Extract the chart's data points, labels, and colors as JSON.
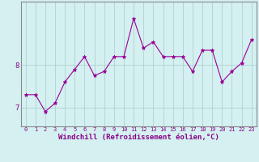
{
  "x": [
    0,
    1,
    2,
    3,
    4,
    5,
    6,
    7,
    8,
    9,
    10,
    11,
    12,
    13,
    14,
    15,
    16,
    17,
    18,
    19,
    20,
    21,
    22,
    23
  ],
  "y": [
    7.3,
    7.3,
    6.9,
    7.1,
    7.6,
    7.9,
    8.2,
    7.75,
    7.85,
    8.2,
    8.2,
    9.1,
    8.4,
    8.55,
    8.2,
    8.2,
    8.2,
    7.85,
    8.35,
    8.35,
    7.6,
    7.85,
    8.05,
    8.6
  ],
  "line_color": "#990099",
  "marker": "*",
  "marker_size": 3.5,
  "bg_color": "#d4f0f0",
  "grid_color": "#aacccc",
  "xlabel": "Windchill (Refroidissement éolien,°C)",
  "xlim": [
    -0.5,
    23.5
  ],
  "ylim": [
    6.55,
    9.5
  ],
  "yticks": [
    7,
    8
  ],
  "xticks": [
    0,
    1,
    2,
    3,
    4,
    5,
    6,
    7,
    8,
    9,
    10,
    11,
    12,
    13,
    14,
    15,
    16,
    17,
    18,
    19,
    20,
    21,
    22,
    23
  ],
  "tick_color": "#880088",
  "tick_fontsize": 5.0,
  "xlabel_fontsize": 6.5,
  "xlabel_color": "#880088",
  "border_color": "#888888",
  "linewidth": 0.8
}
